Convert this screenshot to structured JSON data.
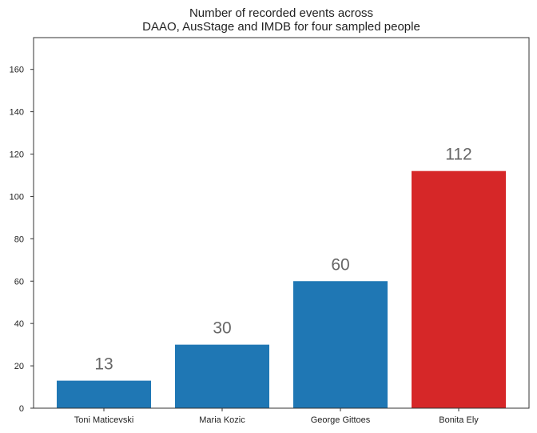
{
  "chart_data": {
    "type": "bar",
    "title": "Number of recorded events across\nDAAO, AusStage and IMDB for four sampled people",
    "xlabel": "",
    "ylabel": "",
    "categories": [
      "Toni Maticevski",
      "Maria Kozic",
      "George Gittoes",
      "Bonita Ely"
    ],
    "values": [
      13,
      30,
      60,
      112
    ],
    "data_labels": [
      "13",
      "30",
      "60",
      "112"
    ],
    "bar_colors": [
      "#1f77b4",
      "#1f77b4",
      "#1f77b4",
      "#d62728"
    ],
    "ylim": [
      0,
      175
    ],
    "yticks": [
      0,
      20,
      40,
      60,
      80,
      100,
      120,
      140,
      160
    ],
    "ytick_labels": [
      "0",
      "20",
      "40",
      "60",
      "80",
      "100",
      "120",
      "140",
      "160"
    ],
    "grid": false,
    "legend": "none"
  }
}
